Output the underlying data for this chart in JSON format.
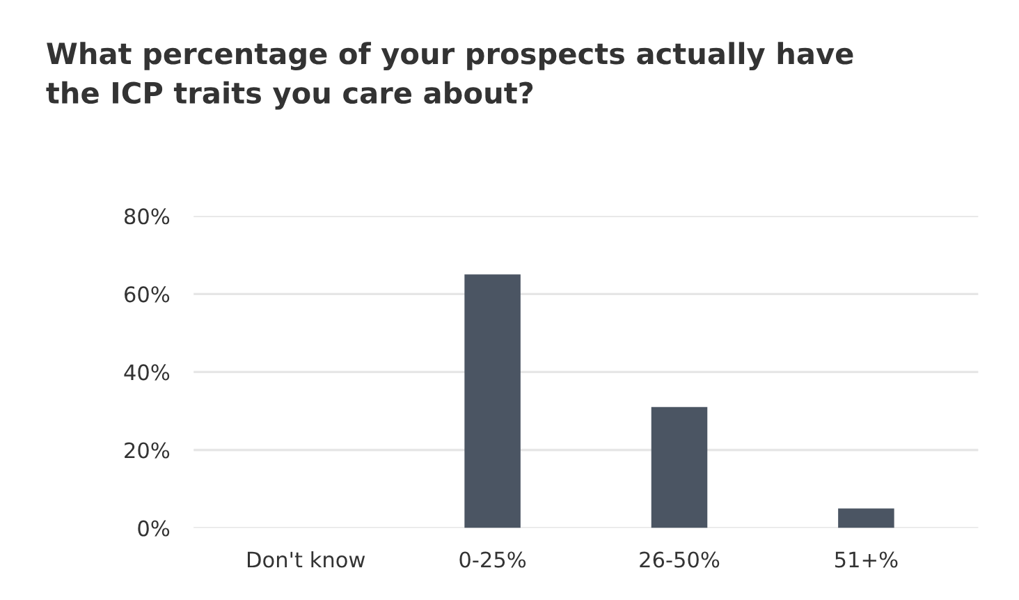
{
  "chart_data": {
    "type": "bar",
    "title": "What percentage of your prospects actually have\nthe ICP traits you care about?",
    "categories": [
      "Don't know",
      "0-25%",
      "26-50%",
      "51+%"
    ],
    "values": [
      0,
      65,
      31,
      5
    ],
    "color": "#4b5563",
    "ylim": [
      0,
      80
    ],
    "yticks": [
      {
        "value": 0,
        "label": "0%"
      },
      {
        "value": 20,
        "label": "20%"
      },
      {
        "value": 40,
        "label": "40%"
      },
      {
        "value": 60,
        "label": "60%"
      },
      {
        "value": 80,
        "label": "80%"
      }
    ],
    "grid": "y",
    "legend": false
  }
}
